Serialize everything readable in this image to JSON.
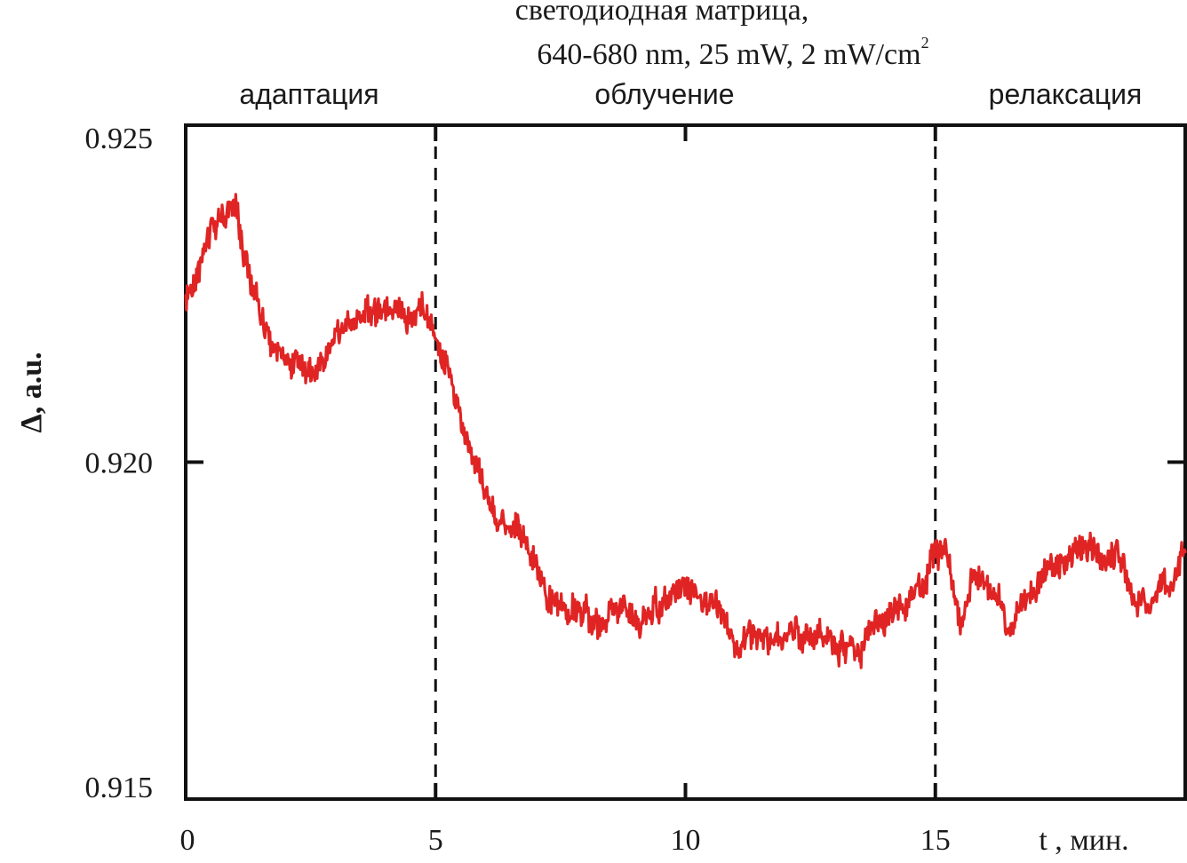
{
  "header": {
    "line1": "светодиодная матрица,",
    "line2": "640-680 nm, 25 mW, 2 mW/cm",
    "line2_sup": "2"
  },
  "phases": [
    {
      "label": "адаптация",
      "color": "#1a1a1a"
    },
    {
      "label": "облучение",
      "color": "#e02424"
    },
    {
      "label": "релаксация",
      "color": "#1a1a1a"
    }
  ],
  "chart_data": {
    "type": "line",
    "xlabel": "t , мин.",
    "ylabel": "Δ, a.u.",
    "xlim": [
      0,
      20
    ],
    "ylim": [
      0.915,
      0.925
    ],
    "x_ticks": [
      "0",
      "5",
      "10",
      "15"
    ],
    "y_ticks": [
      "0.925",
      "0.920",
      "0.915"
    ],
    "vlines": [
      5,
      15
    ],
    "series": [
      {
        "color": "#e02424",
        "x": [
          0,
          0.25,
          0.5,
          0.75,
          1.0,
          1.25,
          1.5,
          1.75,
          2.0,
          2.25,
          2.5,
          2.75,
          3.0,
          3.25,
          3.5,
          3.75,
          4.0,
          4.25,
          4.5,
          4.75,
          5.0,
          5.25,
          5.5,
          5.75,
          6.0,
          6.25,
          6.5,
          6.75,
          7.0,
          7.25,
          7.5,
          7.75,
          8.0,
          8.25,
          8.5,
          8.75,
          9.0,
          9.25,
          9.5,
          9.75,
          10.0,
          10.25,
          10.5,
          10.75,
          11.0,
          11.25,
          11.5,
          11.75,
          12.0,
          12.25,
          12.5,
          12.75,
          13.0,
          13.25,
          13.5,
          13.75,
          14.0,
          14.25,
          14.5,
          14.75,
          15.0,
          15.25,
          15.5,
          15.75,
          16.0,
          16.25,
          16.5,
          16.75,
          17.0,
          17.25,
          17.5,
          17.75,
          18.0,
          18.25,
          18.5,
          18.75,
          19.0,
          19.25,
          19.5,
          19.75,
          20.0
        ],
        "y": [
          0.9223,
          0.9228,
          0.9235,
          0.9237,
          0.9238,
          0.9228,
          0.9222,
          0.9217,
          0.9216,
          0.9214,
          0.9213,
          0.9215,
          0.9219,
          0.9221,
          0.9221,
          0.9223,
          0.9222,
          0.9223,
          0.9221,
          0.9224,
          0.9218,
          0.9213,
          0.9206,
          0.9201,
          0.9196,
          0.9192,
          0.9191,
          0.9189,
          0.9185,
          0.918,
          0.9179,
          0.9178,
          0.9178,
          0.9176,
          0.9178,
          0.9178,
          0.9177,
          0.9177,
          0.9179,
          0.9181,
          0.9182,
          0.918,
          0.918,
          0.9178,
          0.9172,
          0.9174,
          0.9174,
          0.9173,
          0.9174,
          0.9174,
          0.9174,
          0.9174,
          0.9172,
          0.9173,
          0.9171,
          0.9177,
          0.9176,
          0.9178,
          0.918,
          0.9181,
          0.9187,
          0.9186,
          0.9176,
          0.9183,
          0.9182,
          0.918,
          0.9175,
          0.9179,
          0.9181,
          0.9185,
          0.9185,
          0.9187,
          0.9187,
          0.9186,
          0.9186,
          0.9185,
          0.9179,
          0.9179,
          0.9181,
          0.9183,
          0.9188
        ]
      }
    ]
  }
}
